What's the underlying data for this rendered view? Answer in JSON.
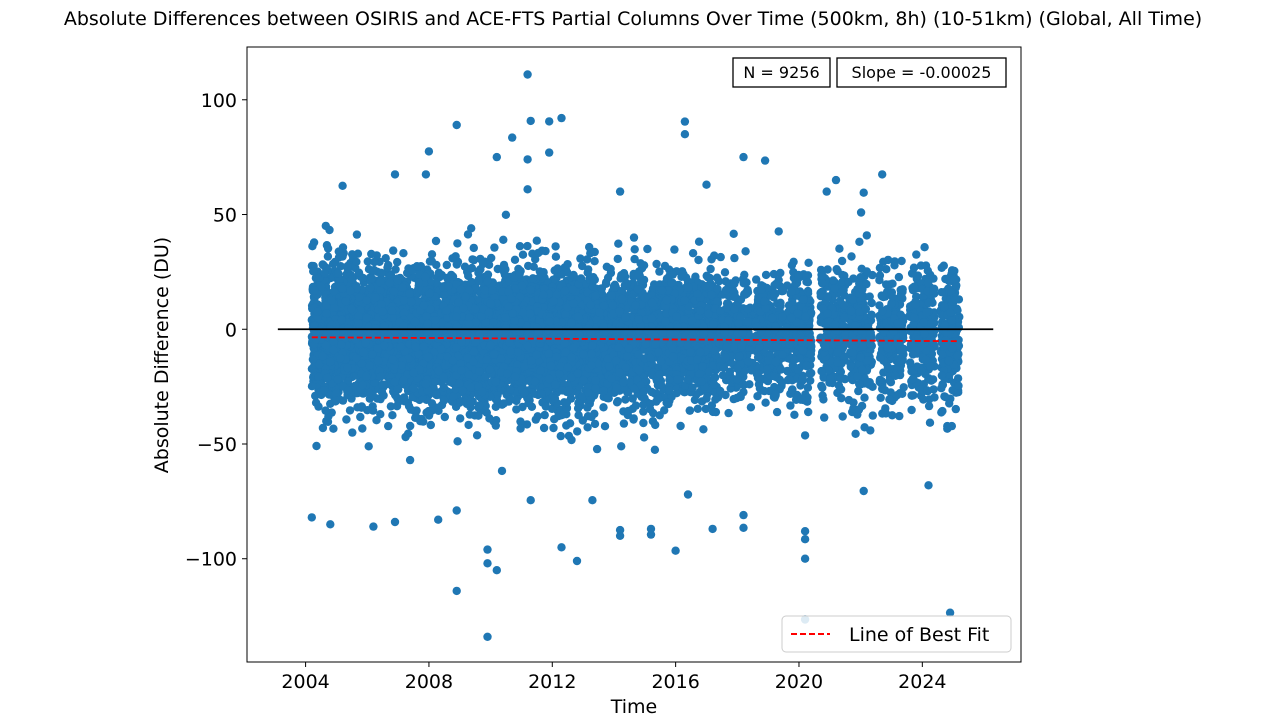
{
  "chart_data": {
    "type": "scatter",
    "title": "Absolute Differences between OSIRIS and ACE-FTS Partial Columns Over Time (500km, 8h) (10-51km) (Global, All Time)",
    "xlabel": "Time",
    "ylabel": "Absolute Difference (DU)",
    "xlim": [
      2002.1,
      2027.2
    ],
    "ylim": [
      -145,
      123
    ],
    "x_ticks": [
      2004,
      2008,
      2012,
      2016,
      2020,
      2024
    ],
    "x_tick_labels": [
      "2004",
      "2008",
      "2012",
      "2016",
      "2020",
      "2024"
    ],
    "y_ticks": [
      100,
      50,
      0,
      -50,
      -100
    ],
    "y_tick_labels": [
      "100",
      "50",
      "0",
      "−50",
      "−100"
    ],
    "grid": false,
    "series": [
      {
        "kind": "scatter",
        "color": "#1f77b4",
        "n_points": 9256,
        "core_center": -3,
        "core_spread_sd": 14,
        "time_range": [
          2004.2,
          2025.2
        ],
        "outliers": [
          [
            2011.2,
            111
          ],
          [
            2016.3,
            90.5
          ],
          [
            2012.3,
            92
          ],
          [
            2011.9,
            90.6
          ],
          [
            2011.3,
            90.8
          ],
          [
            2008.9,
            89
          ],
          [
            2016.3,
            85
          ],
          [
            2010.7,
            83.5
          ],
          [
            2008.0,
            77.5
          ],
          [
            2011.9,
            77
          ],
          [
            2010.2,
            75
          ],
          [
            2018.2,
            75
          ],
          [
            2018.9,
            73.5
          ],
          [
            2011.2,
            74
          ],
          [
            2007.9,
            67.5
          ],
          [
            2006.9,
            67.5
          ],
          [
            2022.7,
            67.5
          ],
          [
            2017.0,
            63
          ],
          [
            2005.2,
            62.5
          ],
          [
            2011.2,
            61
          ],
          [
            2021.2,
            65
          ],
          [
            2020.9,
            60
          ],
          [
            2022.1,
            59.5
          ],
          [
            2014.2,
            60
          ],
          [
            2008.9,
            -114
          ],
          [
            2009.9,
            -134
          ],
          [
            2009.9,
            -96
          ],
          [
            2010.2,
            -105
          ],
          [
            2009.9,
            -102
          ],
          [
            2012.3,
            -95
          ],
          [
            2012.8,
            -101
          ],
          [
            2016.0,
            -96.5
          ],
          [
            2020.2,
            -100
          ],
          [
            2020.2,
            -126.5
          ],
          [
            2020.2,
            -91.5
          ],
          [
            2020.2,
            -88
          ],
          [
            2024.9,
            -123.5
          ],
          [
            2006.2,
            -86
          ],
          [
            2004.2,
            -82
          ],
          [
            2004.8,
            -85
          ],
          [
            2006.9,
            -84
          ],
          [
            2008.3,
            -83
          ],
          [
            2008.9,
            -79
          ],
          [
            2014.2,
            -90
          ],
          [
            2014.2,
            -87.5
          ],
          [
            2015.2,
            -89.5
          ],
          [
            2015.2,
            -87
          ],
          [
            2016.4,
            -72
          ],
          [
            2017.2,
            -87
          ],
          [
            2018.2,
            -86.5
          ],
          [
            2018.2,
            -81
          ],
          [
            2022.1,
            -70.5
          ],
          [
            2024.2,
            -68
          ],
          [
            2013.3,
            -74.5
          ],
          [
            2011.3,
            -74.5
          ]
        ]
      },
      {
        "name": "Line of Best Fit",
        "kind": "line",
        "style": "dashed",
        "color": "#ff0000",
        "x": [
          2004.2,
          2025.2
        ],
        "y": [
          -3.5,
          -5.2
        ]
      },
      {
        "kind": "hline",
        "color": "#000000",
        "y": 0,
        "x": [
          2003.1,
          2026.3
        ]
      }
    ],
    "annotations": [
      "N = 9256",
      "Slope = -0.00025"
    ],
    "legend_position": "lower right"
  }
}
